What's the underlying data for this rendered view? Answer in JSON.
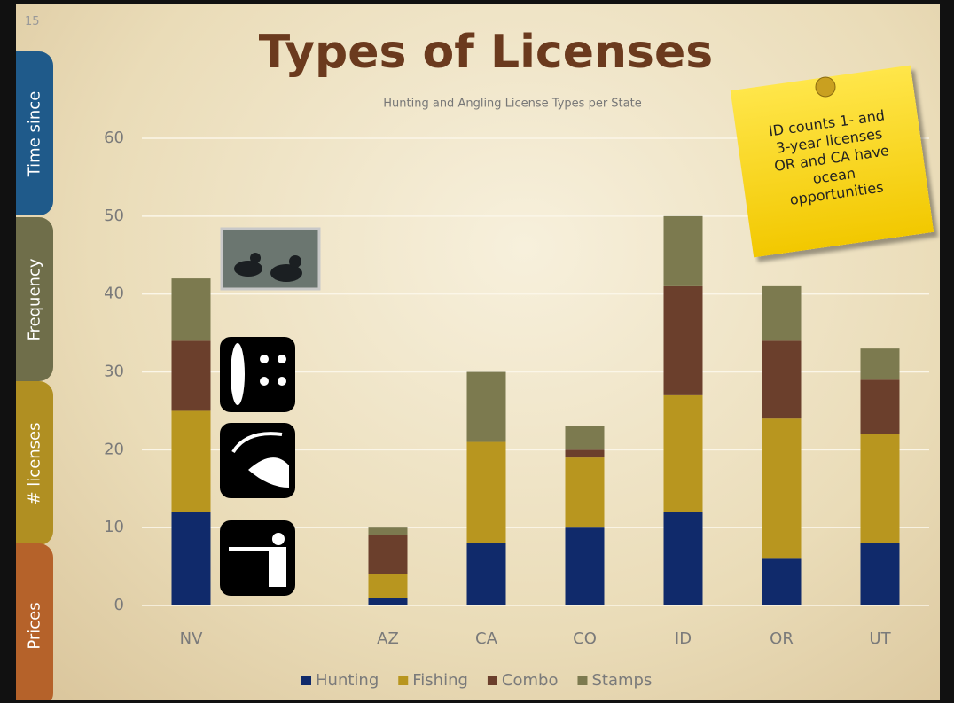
{
  "slide_number": "15",
  "tabs": [
    "Time since",
    "Frequency",
    "# licenses",
    "Prices"
  ],
  "note": [
    "ID counts 1- and",
    "3-year licenses",
    "OR and CA have",
    "ocean",
    "opportunities"
  ],
  "chart_data": {
    "type": "stacked_bar",
    "title": "Types of Licenses",
    "subtitle": "Hunting and Angling License Types per State",
    "categories": [
      "NV",
      null,
      "AZ",
      "CA",
      "CO",
      "ID",
      "OR",
      "UT"
    ],
    "series": [
      {
        "name": "Hunting",
        "color": "#102a6b",
        "values": [
          12,
          null,
          1,
          8,
          10,
          12,
          6,
          8
        ]
      },
      {
        "name": "Fishing",
        "color": "#b8961f",
        "values": [
          13,
          null,
          3,
          13,
          9,
          15,
          18,
          14
        ]
      },
      {
        "name": "Combo",
        "color": "#6b3f2c",
        "values": [
          9,
          null,
          5,
          0,
          1,
          14,
          10,
          7
        ]
      },
      {
        "name": "Stamps",
        "color": "#7c7a4f",
        "values": [
          8,
          null,
          1,
          9,
          3,
          9,
          7,
          4
        ]
      }
    ],
    "ylim": [
      0,
      60
    ],
    "yticks": [
      0,
      10,
      20,
      30,
      40,
      50,
      60
    ],
    "grid": true
  }
}
